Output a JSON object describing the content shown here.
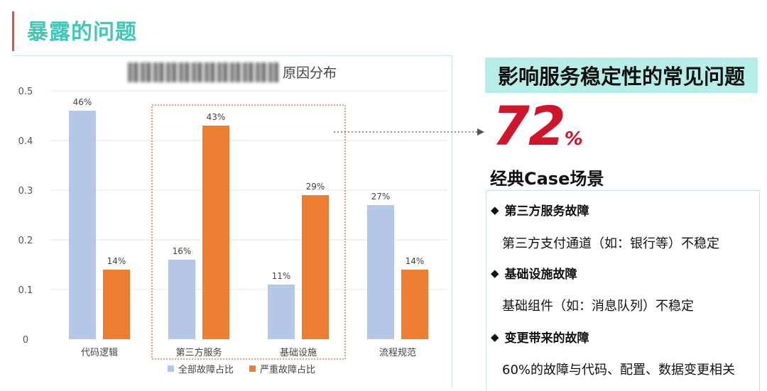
{
  "header": {
    "title": "暴露的问题"
  },
  "chart_data": {
    "type": "bar",
    "title_visible_part": "原因分布",
    "categories": [
      "代码逻辑",
      "第三方服务",
      "基础设施",
      "流程规范"
    ],
    "series": [
      {
        "name": "全部故障占比",
        "values": [
          0.46,
          0.16,
          0.11,
          0.27
        ],
        "labels": [
          "46%",
          "16%",
          "11%",
          "27%"
        ],
        "color": "#b4c7e7"
      },
      {
        "name": "严重故障占比",
        "values": [
          0.14,
          0.43,
          0.29,
          0.14
        ],
        "labels": [
          "14%",
          "43%",
          "29%",
          "14%"
        ],
        "color": "#ed7d31"
      }
    ],
    "yticks": [
      "0",
      "0.1",
      "0.2",
      "0.3",
      "0.4",
      "0.5"
    ],
    "ylim": [
      0,
      0.5
    ],
    "grid": true,
    "legend": "bottom",
    "highlight_categories": [
      "第三方服务",
      "基础设施"
    ]
  },
  "panel": {
    "headline": "影响服务稳定性的常见问题",
    "stat_value": "72",
    "stat_unit": "%",
    "cases_title": "经典Case场景",
    "cases": [
      {
        "title": "第三方服务故障",
        "desc": "第三方支付通道（如：银行等）不稳定"
      },
      {
        "title": "基础设施故障",
        "desc": "基础组件（如：消息队列）不稳定"
      },
      {
        "title": "变更带来的故障",
        "desc": "60%的故障与代码、配置、数据变更相关"
      }
    ],
    "bullet": "◆"
  }
}
